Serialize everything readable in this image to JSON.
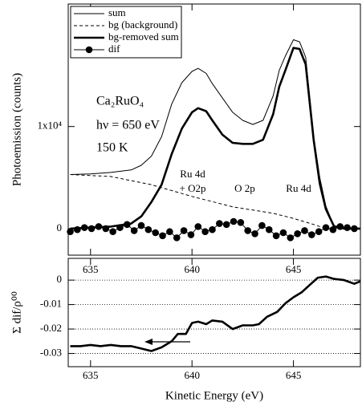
{
  "chart_data": [
    {
      "type": "line",
      "y_label": "Photoemission (counts)",
      "annotations": [
        "Ca₂RuO₄",
        "hν = 650 eV",
        "150 K",
        "Ru 4d",
        "+ O2p",
        "O 2p",
        "Ru 4d"
      ],
      "xlim": [
        633.9,
        648.3
      ],
      "xticks": [
        635,
        640,
        645
      ],
      "ylim": [
        -2600,
        22000
      ],
      "yticks": [
        0,
        {
          "value": 10000,
          "label": "1x10⁴"
        }
      ],
      "legend": "upper left",
      "series": [
        {
          "name": "sum",
          "color": "#000000",
          "line_style": "solid",
          "weight": "thin",
          "x": [
            634,
            635,
            636,
            637,
            637.5,
            638,
            638.5,
            639,
            639.5,
            640,
            640.3,
            640.7,
            641,
            641.5,
            642,
            642.5,
            643,
            643.5,
            644,
            644.3,
            644.6,
            645,
            645.3,
            645.6,
            646,
            646.3,
            646.6,
            647,
            647.5,
            648.3
          ],
          "values": [
            5300,
            5350,
            5500,
            5750,
            6200,
            7100,
            9000,
            12200,
            14300,
            15400,
            15700,
            15200,
            14200,
            12800,
            11400,
            10600,
            10200,
            10600,
            13000,
            15500,
            16900,
            18500,
            18300,
            16800,
            9000,
            5000,
            2200,
            240,
            0,
            0
          ]
        },
        {
          "name": "bg (background)",
          "color": "#000000",
          "line_style": "dashed",
          "weight": "thin",
          "x": [
            634,
            636,
            638,
            640,
            642,
            644,
            645,
            646,
            646.6,
            647,
            648.3
          ],
          "values": [
            5300,
            5100,
            4300,
            3150,
            2130,
            1500,
            1000,
            400,
            0,
            0,
            0
          ]
        },
        {
          "name": "bg-removed sum",
          "color": "#000000",
          "line_style": "solid",
          "weight": "thick",
          "x": [
            634,
            635,
            636,
            637,
            637.5,
            638,
            638.5,
            639,
            639.5,
            640,
            640.3,
            640.7,
            641,
            641.5,
            642,
            642.5,
            643,
            643.5,
            644,
            644.3,
            644.6,
            645,
            645.3,
            645.6,
            646,
            646.3,
            646.6,
            647,
            647.5,
            648.3
          ],
          "values": [
            0,
            100,
            200,
            500,
            1200,
            2600,
            4300,
            7300,
            9800,
            11400,
            11800,
            11500,
            10600,
            9200,
            8400,
            8300,
            8300,
            8700,
            11200,
            13900,
            15500,
            17700,
            17600,
            16100,
            8600,
            4400,
            1900,
            240,
            0,
            0
          ]
        },
        {
          "name": "dif",
          "color": "#000000",
          "line_style": "solid",
          "weight": "thin",
          "marker": "circle",
          "x": [
            634,
            634.35,
            634.7,
            635.05,
            635.4,
            635.75,
            636.1,
            636.45,
            636.8,
            637.15,
            637.5,
            637.85,
            638.2,
            638.55,
            638.9,
            639.25,
            639.6,
            639.95,
            640.3,
            640.65,
            641,
            641.35,
            641.7,
            642.05,
            642.4,
            642.75,
            643.1,
            643.45,
            643.8,
            644.15,
            644.5,
            644.85,
            645.2,
            645.55,
            645.9,
            646.25,
            646.6,
            646.95,
            647.3,
            647.65,
            648
          ],
          "values": [
            -300,
            -100,
            100,
            0,
            200,
            0,
            -300,
            100,
            400,
            -200,
            300,
            -100,
            -400,
            -700,
            -300,
            -900,
            -200,
            -600,
            200,
            -300,
            -100,
            500,
            400,
            700,
            600,
            -200,
            -500,
            300,
            -100,
            -700,
            -400,
            -900,
            -500,
            -200,
            -600,
            -300,
            100,
            -100,
            200,
            100,
            0
          ]
        }
      ]
    },
    {
      "type": "line",
      "x_label": "Kinetic Energy (eV)",
      "y_label": "Σ dif/ρ⁰⁰",
      "xlim": [
        633.9,
        648.3
      ],
      "xticks": [
        635,
        640,
        645
      ],
      "ylim": [
        -0.0354,
        0.0089
      ],
      "yticks": [
        0,
        -0.01,
        -0.02,
        -0.03
      ],
      "grid": true,
      "series": [
        {
          "color": "#000000",
          "line_style": "solid",
          "weight": "thick",
          "x": [
            634,
            634.5,
            635,
            635.5,
            636,
            636.5,
            637,
            637.5,
            638,
            638.5,
            639,
            639.3,
            639.7,
            640,
            640.3,
            640.7,
            641,
            641.5,
            642,
            642.5,
            643,
            643.3,
            643.7,
            644.2,
            644.6,
            645,
            645.4,
            645.8,
            646.2,
            646.6,
            647,
            647.5,
            648,
            648.3
          ],
          "values": [
            -0.027,
            -0.027,
            -0.0265,
            -0.027,
            -0.0265,
            -0.027,
            -0.027,
            -0.028,
            -0.029,
            -0.0275,
            -0.025,
            -0.022,
            -0.022,
            -0.0175,
            -0.017,
            -0.018,
            -0.0165,
            -0.017,
            -0.02,
            -0.0185,
            -0.0185,
            -0.018,
            -0.015,
            -0.013,
            -0.0095,
            -0.007,
            -0.005,
            -0.002,
            0.001,
            0.0015,
            0.0005,
            0,
            -0.0015,
            -0.0005
          ]
        }
      ]
    }
  ]
}
